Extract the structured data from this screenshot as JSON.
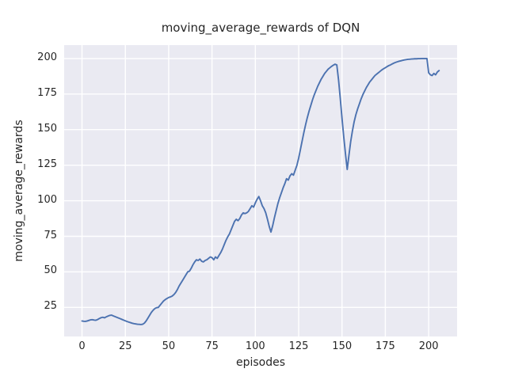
{
  "chart_data": {
    "type": "line",
    "title": "moving_average_rewards of DQN",
    "xlabel": "episodes",
    "ylabel": "moving_average_rewards",
    "legend": null,
    "grid": true,
    "background_color": "#eaeaf2",
    "grid_color": "#ffffff",
    "line_color": "#4c72b0",
    "text_color": "#262626",
    "xlim": [
      -10.3,
      216.4
    ],
    "ylim": [
      4.6,
      209.4
    ],
    "xticks": [
      0,
      25,
      50,
      75,
      100,
      125,
      150,
      175,
      200
    ],
    "yticks": [
      25,
      50,
      75,
      100,
      125,
      150,
      175,
      200
    ],
    "series_name": "moving_average_rewards",
    "points": [
      [
        0,
        15.5
      ],
      [
        1,
        15.3
      ],
      [
        2,
        15.2
      ],
      [
        3,
        15.5
      ],
      [
        4,
        15.9
      ],
      [
        5,
        16.3
      ],
      [
        6,
        16.4
      ],
      [
        7,
        16.1
      ],
      [
        8,
        16.0
      ],
      [
        9,
        16.5
      ],
      [
        10,
        17.2
      ],
      [
        11,
        17.8
      ],
      [
        12,
        18.1
      ],
      [
        13,
        17.7
      ],
      [
        14,
        18.4
      ],
      [
        15,
        18.9
      ],
      [
        16,
        19.4
      ],
      [
        17,
        19.6
      ],
      [
        18,
        19.1
      ],
      [
        19,
        18.6
      ],
      [
        20,
        18.1
      ],
      [
        21,
        17.6
      ],
      [
        22,
        17.1
      ],
      [
        23,
        16.6
      ],
      [
        24,
        16.1
      ],
      [
        25,
        15.6
      ],
      [
        26,
        15.1
      ],
      [
        27,
        14.7
      ],
      [
        28,
        14.3
      ],
      [
        29,
        13.9
      ],
      [
        30,
        13.6
      ],
      [
        31,
        13.4
      ],
      [
        32,
        13.2
      ],
      [
        33,
        13.1
      ],
      [
        34,
        13.0
      ],
      [
        35,
        13.2
      ],
      [
        36,
        14.0
      ],
      [
        37,
        15.5
      ],
      [
        38,
        17.5
      ],
      [
        39,
        19.5
      ],
      [
        40,
        21.5
      ],
      [
        41,
        23.0
      ],
      [
        42,
        24.2
      ],
      [
        43,
        24.8
      ],
      [
        44,
        25.0
      ],
      [
        45,
        26.5
      ],
      [
        46,
        28.0
      ],
      [
        47,
        29.5
      ],
      [
        48,
        30.5
      ],
      [
        49,
        31.3
      ],
      [
        50,
        32.0
      ],
      [
        51,
        32.4
      ],
      [
        52,
        33.0
      ],
      [
        53,
        34.0
      ],
      [
        54,
        35.5
      ],
      [
        55,
        37.5
      ],
      [
        56,
        40.0
      ],
      [
        57,
        42.0
      ],
      [
        58,
        44.0
      ],
      [
        59,
        46.0
      ],
      [
        60,
        48.0
      ],
      [
        61,
        50.0
      ],
      [
        62,
        50.5
      ],
      [
        63,
        52.5
      ],
      [
        64,
        55.0
      ],
      [
        65,
        57.0
      ],
      [
        66,
        58.5
      ],
      [
        67,
        58.0
      ],
      [
        68,
        59.0
      ],
      [
        69,
        57.5
      ],
      [
        70,
        57.0
      ],
      [
        71,
        58.0
      ],
      [
        72,
        58.5
      ],
      [
        73,
        59.5
      ],
      [
        74,
        60.5
      ],
      [
        75,
        60.0
      ],
      [
        76,
        58.5
      ],
      [
        77,
        60.5
      ],
      [
        78,
        59.5
      ],
      [
        79,
        61.5
      ],
      [
        80,
        63.5
      ],
      [
        81,
        66.0
      ],
      [
        82,
        69.0
      ],
      [
        83,
        72.0
      ],
      [
        84,
        74.5
      ],
      [
        85,
        76.5
      ],
      [
        86,
        79.5
      ],
      [
        87,
        82.5
      ],
      [
        88,
        85.5
      ],
      [
        89,
        87.0
      ],
      [
        90,
        86.0
      ],
      [
        91,
        87.5
      ],
      [
        92,
        90.0
      ],
      [
        93,
        91.5
      ],
      [
        94,
        91.0
      ],
      [
        95,
        91.5
      ],
      [
        96,
        92.5
      ],
      [
        97,
        94.5
      ],
      [
        98,
        96.5
      ],
      [
        99,
        95.5
      ],
      [
        100,
        98.5
      ],
      [
        101,
        101.0
      ],
      [
        102,
        103.0
      ],
      [
        103,
        100.0
      ],
      [
        104,
        96.5
      ],
      [
        105,
        94.5
      ],
      [
        106,
        91.5
      ],
      [
        107,
        87.0
      ],
      [
        108,
        82.0
      ],
      [
        109,
        78.0
      ],
      [
        110,
        82.5
      ],
      [
        111,
        88.0
      ],
      [
        112,
        93.0
      ],
      [
        113,
        98.0
      ],
      [
        114,
        102.0
      ],
      [
        115,
        105.5
      ],
      [
        116,
        109.0
      ],
      [
        117,
        112.0
      ],
      [
        118,
        115.5
      ],
      [
        119,
        114.5
      ],
      [
        120,
        117.5
      ],
      [
        121,
        119.0
      ],
      [
        122,
        118.0
      ],
      [
        123,
        121.5
      ],
      [
        124,
        125.0
      ],
      [
        125,
        130.0
      ],
      [
        126,
        136.0
      ],
      [
        127,
        142.0
      ],
      [
        128,
        148.0
      ],
      [
        129,
        153.5
      ],
      [
        130,
        158.5
      ],
      [
        131,
        163.0
      ],
      [
        132,
        167.0
      ],
      [
        133,
        171.0
      ],
      [
        134,
        174.5
      ],
      [
        135,
        177.5
      ],
      [
        136,
        180.5
      ],
      [
        137,
        183.0
      ],
      [
        138,
        185.5
      ],
      [
        139,
        187.5
      ],
      [
        140,
        189.5
      ],
      [
        141,
        191.0
      ],
      [
        142,
        192.5
      ],
      [
        143,
        193.5
      ],
      [
        144,
        194.5
      ],
      [
        145,
        195.3
      ],
      [
        146,
        196.0
      ],
      [
        147,
        195.5
      ],
      [
        148,
        185.0
      ],
      [
        149,
        172.0
      ],
      [
        150,
        158.0
      ],
      [
        151,
        145.0
      ],
      [
        152,
        133.0
      ],
      [
        153,
        122.0
      ],
      [
        154,
        132.0
      ],
      [
        155,
        141.5
      ],
      [
        156,
        149.0
      ],
      [
        157,
        155.5
      ],
      [
        158,
        160.5
      ],
      [
        159,
        164.5
      ],
      [
        160,
        168.0
      ],
      [
        161,
        171.5
      ],
      [
        162,
        174.5
      ],
      [
        163,
        177.0
      ],
      [
        164,
        179.5
      ],
      [
        165,
        181.5
      ],
      [
        166,
        183.5
      ],
      [
        167,
        185.0
      ],
      [
        168,
        186.5
      ],
      [
        169,
        188.0
      ],
      [
        170,
        189.0
      ],
      [
        171,
        190.0
      ],
      [
        172,
        191.0
      ],
      [
        173,
        192.0
      ],
      [
        174,
        192.8
      ],
      [
        175,
        193.5
      ],
      [
        176,
        194.3
      ],
      [
        177,
        195.0
      ],
      [
        178,
        195.5
      ],
      [
        179,
        196.2
      ],
      [
        180,
        196.8
      ],
      [
        181,
        197.3
      ],
      [
        182,
        197.7
      ],
      [
        183,
        198.1
      ],
      [
        184,
        198.4
      ],
      [
        185,
        198.7
      ],
      [
        186,
        199.0
      ],
      [
        187,
        199.2
      ],
      [
        188,
        199.4
      ],
      [
        189,
        199.5
      ],
      [
        190,
        199.6
      ],
      [
        191,
        199.7
      ],
      [
        192,
        199.8
      ],
      [
        193,
        199.8
      ],
      [
        194,
        199.9
      ],
      [
        195,
        199.9
      ],
      [
        196,
        200.0
      ],
      [
        197,
        200.0
      ],
      [
        198,
        200.0
      ],
      [
        199,
        200.0
      ],
      [
        200,
        190.0
      ],
      [
        201,
        188.5
      ],
      [
        202,
        188.0
      ],
      [
        203,
        189.5
      ],
      [
        204,
        188.5
      ],
      [
        205,
        190.5
      ],
      [
        206,
        191.5
      ]
    ]
  }
}
